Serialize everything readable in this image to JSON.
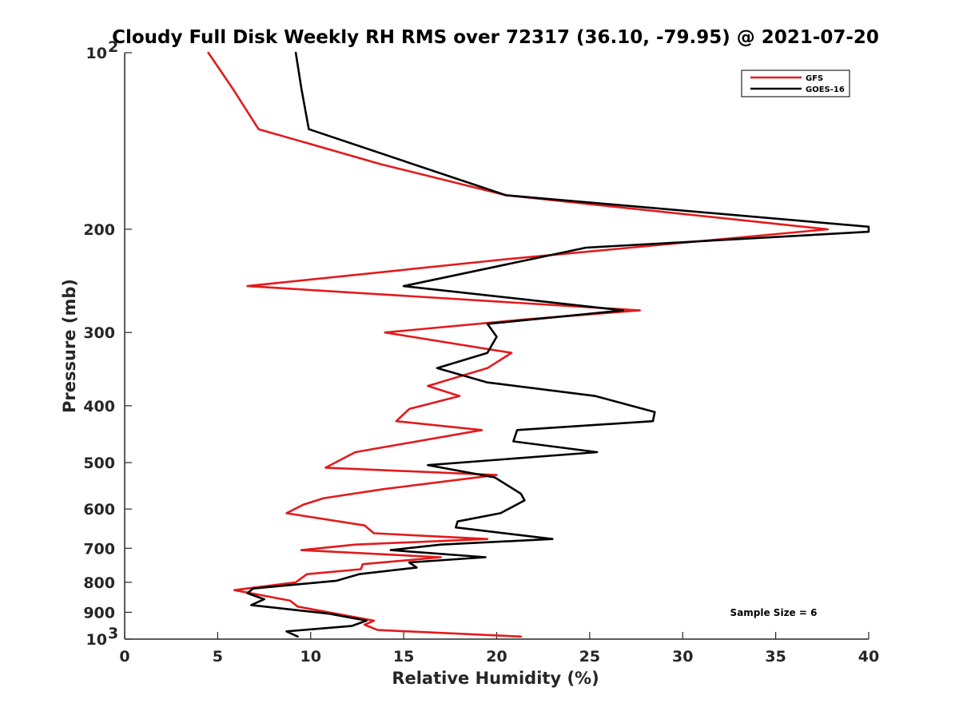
{
  "chart_data": {
    "type": "line",
    "title": "Cloudy Full Disk Weekly RH RMS over 72317 (36.10, -79.95) @ 2021-07-20",
    "xlabel": "Relative Humidity (%)",
    "ylabel": "Pressure (mb)",
    "xlim": [
      0,
      40
    ],
    "ylim": [
      100,
      1000
    ],
    "yscale": "log",
    "y_reversed": true,
    "grid": false,
    "legend_position": "top-right",
    "x_ticks": [
      {
        "value": 0,
        "label": "0"
      },
      {
        "value": 5,
        "label": "5"
      },
      {
        "value": 10,
        "label": "10"
      },
      {
        "value": 15,
        "label": "15"
      },
      {
        "value": 20,
        "label": "20"
      },
      {
        "value": 25,
        "label": "25"
      },
      {
        "value": 30,
        "label": "30"
      },
      {
        "value": 35,
        "label": "35"
      },
      {
        "value": 40,
        "label": "40"
      }
    ],
    "y_ticks": [
      {
        "value": 100,
        "label": "10",
        "sup": "2"
      },
      {
        "value": 200,
        "label": "200",
        "sup": ""
      },
      {
        "value": 300,
        "label": "300",
        "sup": ""
      },
      {
        "value": 400,
        "label": "400",
        "sup": ""
      },
      {
        "value": 500,
        "label": "500",
        "sup": ""
      },
      {
        "value": 600,
        "label": "600",
        "sup": ""
      },
      {
        "value": 700,
        "label": "700",
        "sup": ""
      },
      {
        "value": 800,
        "label": "800",
        "sup": ""
      },
      {
        "value": 900,
        "label": "900",
        "sup": ""
      },
      {
        "value": 1000,
        "label": "10",
        "sup": "3"
      }
    ],
    "annotation": "Sample Size = 6",
    "series": [
      {
        "name": "GFS",
        "color": "#e31a1c",
        "points": [
          [
            4.5,
            100
          ],
          [
            5.8,
            115
          ],
          [
            7.2,
            135
          ],
          [
            13.8,
            155
          ],
          [
            20.5,
            175
          ],
          [
            37.8,
            200
          ],
          [
            20.5,
            225
          ],
          [
            6.6,
            250
          ],
          [
            27.7,
            275
          ],
          [
            21.5,
            285
          ],
          [
            14.0,
            300
          ],
          [
            20.8,
            325
          ],
          [
            19.5,
            345
          ],
          [
            16.3,
            370
          ],
          [
            18.0,
            385
          ],
          [
            15.3,
            405
          ],
          [
            14.6,
            425
          ],
          [
            19.2,
            440
          ],
          [
            12.4,
            480
          ],
          [
            10.8,
            510
          ],
          [
            20.0,
            525
          ],
          [
            13.9,
            555
          ],
          [
            10.7,
            575
          ],
          [
            9.6,
            590
          ],
          [
            8.7,
            610
          ],
          [
            12.9,
            640
          ],
          [
            13.4,
            660
          ],
          [
            19.5,
            675
          ],
          [
            12.4,
            690
          ],
          [
            9.5,
            705
          ],
          [
            17.0,
            725
          ],
          [
            12.8,
            745
          ],
          [
            12.7,
            760
          ],
          [
            9.8,
            775
          ],
          [
            9.2,
            800
          ],
          [
            5.9,
            825
          ],
          [
            8.9,
            860
          ],
          [
            9.3,
            880
          ],
          [
            13.4,
            930
          ],
          [
            12.9,
            945
          ],
          [
            13.6,
            965
          ],
          [
            21.3,
            990
          ]
        ]
      },
      {
        "name": "GOES-16",
        "color": "#000000",
        "points": [
          [
            9.2,
            100
          ],
          [
            9.5,
            115
          ],
          [
            9.9,
            135
          ],
          [
            20.5,
            175
          ],
          [
            40.0,
            198
          ],
          [
            40.0,
            202
          ],
          [
            24.8,
            215
          ],
          [
            15.0,
            250
          ],
          [
            26.8,
            275
          ],
          [
            19.5,
            290
          ],
          [
            20.0,
            305
          ],
          [
            19.5,
            325
          ],
          [
            16.8,
            345
          ],
          [
            19.5,
            365
          ],
          [
            25.3,
            385
          ],
          [
            28.5,
            410
          ],
          [
            28.4,
            425
          ],
          [
            21.1,
            440
          ],
          [
            20.9,
            460
          ],
          [
            25.4,
            480
          ],
          [
            16.3,
            505
          ],
          [
            19.9,
            530
          ],
          [
            21.3,
            565
          ],
          [
            21.5,
            580
          ],
          [
            20.2,
            610
          ],
          [
            17.9,
            630
          ],
          [
            17.8,
            645
          ],
          [
            23.0,
            675
          ],
          [
            17.0,
            690
          ],
          [
            14.3,
            705
          ],
          [
            19.4,
            725
          ],
          [
            15.3,
            740
          ],
          [
            15.7,
            755
          ],
          [
            12.6,
            775
          ],
          [
            11.4,
            795
          ],
          [
            6.9,
            820
          ],
          [
            6.6,
            835
          ],
          [
            7.5,
            855
          ],
          [
            6.8,
            875
          ],
          [
            11.0,
            905
          ],
          [
            13.0,
            930
          ],
          [
            12.2,
            950
          ],
          [
            8.7,
            970
          ],
          [
            9.3,
            990
          ]
        ]
      }
    ]
  }
}
